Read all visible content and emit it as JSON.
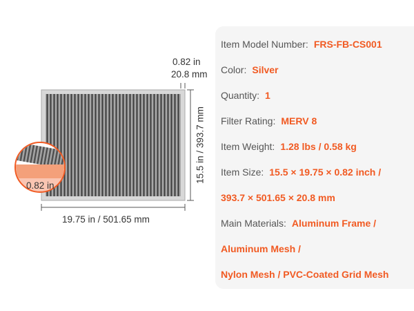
{
  "dimensions": {
    "thickness_in": "0.82 in",
    "thickness_mm": "20.8 mm",
    "height": "15.5 in / 393.7 mm",
    "width": "19.75 in / 501.65 mm",
    "inset_thickness": "0.82 in"
  },
  "specs": [
    {
      "label": "Item Model Number:",
      "value_lines": [
        "FRS-FB-CS001"
      ]
    },
    {
      "label": "Color:",
      "value_lines": [
        "Silver"
      ]
    },
    {
      "label": "Quantity:",
      "value_lines": [
        "1"
      ]
    },
    {
      "label": "Filter Rating:",
      "value_lines": [
        "MERV 8"
      ]
    },
    {
      "label": "Item Weight:",
      "value_lines": [
        "1.28 lbs / 0.58 kg"
      ]
    },
    {
      "label": "Item Size:",
      "value_lines": [
        "15.5 × 19.75 × 0.82 inch /",
        "393.7 × 501.65 × 20.8 mm"
      ]
    },
    {
      "label": "Main Materials:",
      "value_lines": [
        "Aluminum Frame /",
        "Aluminum Mesh /",
        "Nylon Mesh / PVC-Coated Grid Mesh"
      ]
    }
  ]
}
